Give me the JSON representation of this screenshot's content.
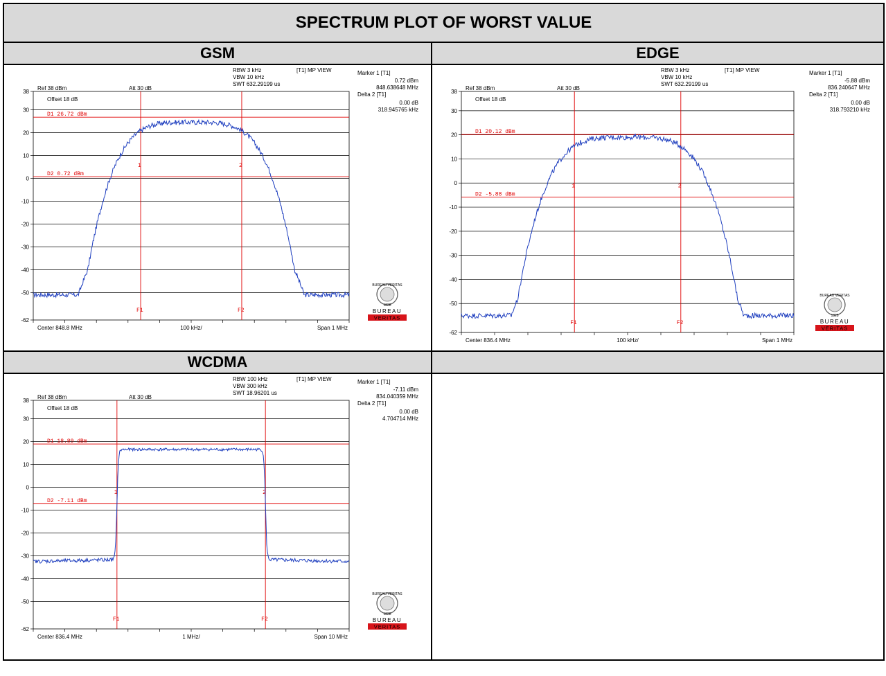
{
  "title": "SPECTRUM PLOT OF WORST VALUE",
  "colors": {
    "trace": "#1f3fbf",
    "marker": "#e00000",
    "grid": "#000000",
    "header_bg": "#d9d9d9",
    "logo_red": "#d7141a"
  },
  "logo": {
    "arc_text": "BUREAU VERITAS",
    "year": "1828",
    "word1": "BUREAU",
    "word2": "VERITAS"
  },
  "chart_data": [
    {
      "type": "line",
      "title": "GSM",
      "header": {
        "rbw": "RBW 3 kHz",
        "vbw": "VBW 10 kHz",
        "swt": "SWT 632.29199 us",
        "mode": "[T1] MP VIEW",
        "ref": "Ref 38 dBm",
        "att": "Att  30 dB",
        "offset": "Offset 18 dB"
      },
      "marker_box": {
        "m1_label": "Marker 1 [T1]",
        "m1_value": "0.72 dBm",
        "m1_freq": "848.638648 MHz",
        "d2_label": "Delta 2 [T1]",
        "d2_value": "0.00 dB",
        "d2_freq": "318.945765 kHz"
      },
      "y_ticks": [
        "38",
        "30",
        "20",
        "10",
        "0",
        "-10",
        "-20",
        "-30",
        "-40",
        "-50",
        "-62"
      ],
      "y_top": 38,
      "y_bottom": -62,
      "footer": {
        "left": "Center 848.8 MHz",
        "mid": "100 kHz/",
        "right": "Span 1 MHz"
      },
      "lines": [
        {
          "label": "D1 26.72 dBm",
          "value": 26.72
        },
        {
          "label": "D2 0.72 dBm",
          "value": 0.72
        }
      ],
      "markers": [
        {
          "id": "1",
          "frac": 0.34
        },
        {
          "id": "2",
          "frac": 0.66
        }
      ],
      "f_labels": [
        "F1",
        "F2"
      ],
      "shape": {
        "kind": "bell",
        "peak": 24.5,
        "floor": -51,
        "width": 0.2,
        "shoulder_level": -12,
        "shoulder_width": 0.1
      }
    },
    {
      "type": "line",
      "title": "EDGE",
      "header": {
        "rbw": "RBW 3 kHz",
        "vbw": "VBW 10 kHz",
        "swt": "SWT 632.29199 us",
        "mode": "[T1] MP VIEW",
        "ref": "Ref 38 dBm",
        "att": "Att  30 dB",
        "offset": "Offset 18 dB"
      },
      "marker_box": {
        "m1_label": "Marker 1 [T1]",
        "m1_value": "-5.88 dBm",
        "m1_freq": "836.240647 MHz",
        "d2_label": "Delta 2 [T1]",
        "d2_value": "0.00 dB",
        "d2_freq": "318.793210 kHz"
      },
      "y_ticks": [
        "38",
        "30",
        "20",
        "10",
        "0",
        "-10",
        "-20",
        "-30",
        "-40",
        "-50",
        "-62"
      ],
      "y_top": 38,
      "y_bottom": -62,
      "footer": {
        "left": "Center 836.4 MHz",
        "mid": "100 kHz/",
        "right": "Span 1 MHz"
      },
      "lines": [
        {
          "label": "D1 20.12 dBm",
          "value": 20.12
        },
        {
          "label": "D2 -5.88 dBm",
          "value": -5.88
        }
      ],
      "markers": [
        {
          "id": "1",
          "frac": 0.34
        },
        {
          "id": "2",
          "frac": 0.66
        }
      ],
      "f_labels": [
        "F1",
        "F2"
      ],
      "shape": {
        "kind": "bell",
        "peak": 19,
        "floor": -55,
        "width": 0.2,
        "shoulder_level": -19,
        "shoulder_width": 0.1
      }
    },
    {
      "type": "line",
      "title": "WCDMA",
      "header": {
        "rbw": "RBW 100 kHz",
        "vbw": "VBW 300 kHz",
        "swt": "SWT 18.96201 us",
        "mode": "[T1] MP VIEW",
        "ref": "Ref 38 dBm",
        "att": "Att  30 dB",
        "offset": "Offset 18 dB"
      },
      "marker_box": {
        "m1_label": "Marker 1 [T1]",
        "m1_value": "-7.11 dBm",
        "m1_freq": "834.040359 MHz",
        "d2_label": "Delta 2 [T1]",
        "d2_value": "0.00 dB",
        "d2_freq": "4.704714 MHz"
      },
      "y_ticks": [
        "38",
        "30",
        "20",
        "10",
        "0",
        "-10",
        "-20",
        "-30",
        "-40",
        "-50",
        "-62"
      ],
      "y_top": 38,
      "y_bottom": -62,
      "footer": {
        "left": "Center 836.4 MHz",
        "mid": "1 MHz/",
        "right": "Span 10 MHz"
      },
      "lines": [
        {
          "label": "D1 18.89 dBm",
          "value": 18.89
        },
        {
          "label": "D2 -7.11 dBm",
          "value": -7.11
        }
      ],
      "markers": [
        {
          "id": "1",
          "frac": 0.265
        },
        {
          "id": "2",
          "frac": 0.735
        }
      ],
      "f_labels": [
        "F1",
        "F2"
      ],
      "shape": {
        "kind": "flat",
        "peak": 16.5,
        "floor": -31,
        "edge_left": 0.265,
        "edge_right": 0.735
      }
    }
  ]
}
